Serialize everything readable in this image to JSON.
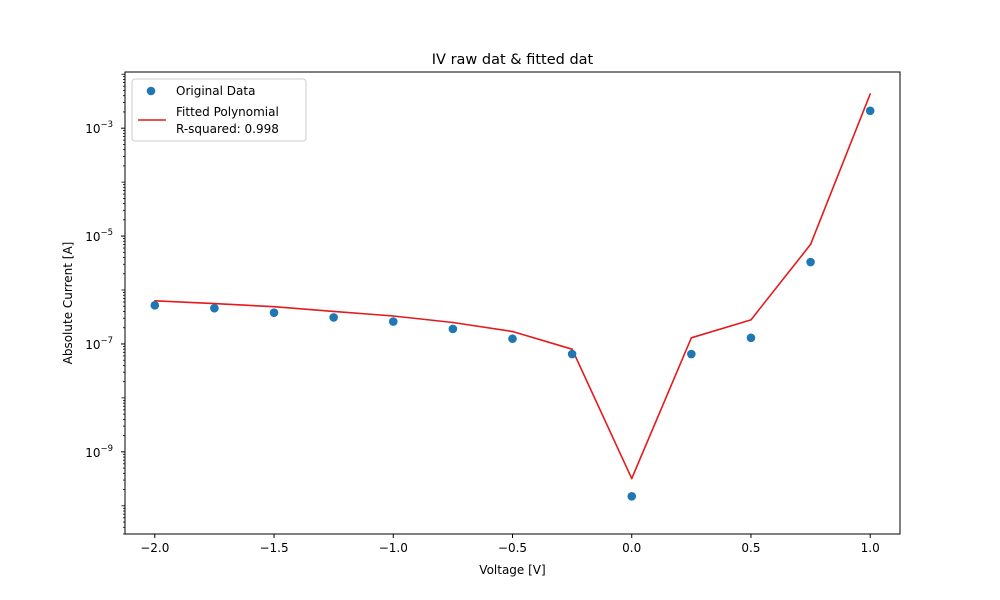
{
  "chart_data": {
    "type": "scatter",
    "title": "IV raw dat & fitted dat",
    "xlabel": "Voltage [V]",
    "ylabel": "Absolute Current [A]",
    "xlim": [
      -2.125,
      1.125
    ],
    "ylim": [
      3e-11,
      0.011
    ],
    "yscale": "log",
    "grid": false,
    "legend_position": "top-left",
    "x_ticks": [
      {
        "value": -2.0,
        "label": "−2.0"
      },
      {
        "value": -1.5,
        "label": "−1.5"
      },
      {
        "value": -1.0,
        "label": "−1.0"
      },
      {
        "value": -0.5,
        "label": "−0.5"
      },
      {
        "value": 0.0,
        "label": "0.0"
      },
      {
        "value": 0.5,
        "label": "0.5"
      },
      {
        "value": 1.0,
        "label": "1.0"
      }
    ],
    "y_ticks": [
      {
        "value": 1e-09,
        "base": "10",
        "exp": "−9"
      },
      {
        "value": 1e-07,
        "base": "10",
        "exp": "−7"
      },
      {
        "value": 1e-05,
        "base": "10",
        "exp": "−5"
      },
      {
        "value": 0.001,
        "base": "10",
        "exp": "−3"
      }
    ],
    "series": [
      {
        "name": "Original Data",
        "kind": "scatter",
        "color": "#1f77b4",
        "x": [
          -2.0,
          -1.75,
          -1.5,
          -1.25,
          -1.0,
          -0.75,
          -0.5,
          -0.25,
          0.0,
          0.25,
          0.5,
          0.75,
          1.0
        ],
        "y": [
          5.2e-07,
          4.6e-07,
          3.8e-07,
          3.1e-07,
          2.6e-07,
          1.9e-07,
          1.25e-07,
          6.5e-08,
          1.5e-10,
          6.5e-08,
          1.3e-07,
          3.3e-06,
          0.0021
        ]
      },
      {
        "name": "Fitted Polynomial\n R-squared: 0.998",
        "kind": "line",
        "color": "#e41a1c",
        "x": [
          -2.0,
          -1.75,
          -1.5,
          -1.25,
          -1.0,
          -0.75,
          -0.5,
          -0.25,
          0.0,
          0.25,
          0.5,
          0.75,
          1.0
        ],
        "y": [
          6.3e-07,
          5.6e-07,
          4.9e-07,
          4e-07,
          3.3e-07,
          2.5e-07,
          1.7e-07,
          8e-08,
          3.2e-10,
          1.3e-07,
          2.8e-07,
          7e-06,
          0.0043
        ]
      }
    ],
    "legend": {
      "items": [
        {
          "label_lines": [
            "Original Data"
          ],
          "kind": "marker",
          "color": "#1f77b4"
        },
        {
          "label_lines": [
            "Fitted Polynomial",
            " R-squared: 0.998"
          ],
          "kind": "line",
          "color": "#e41a1c"
        }
      ]
    }
  }
}
